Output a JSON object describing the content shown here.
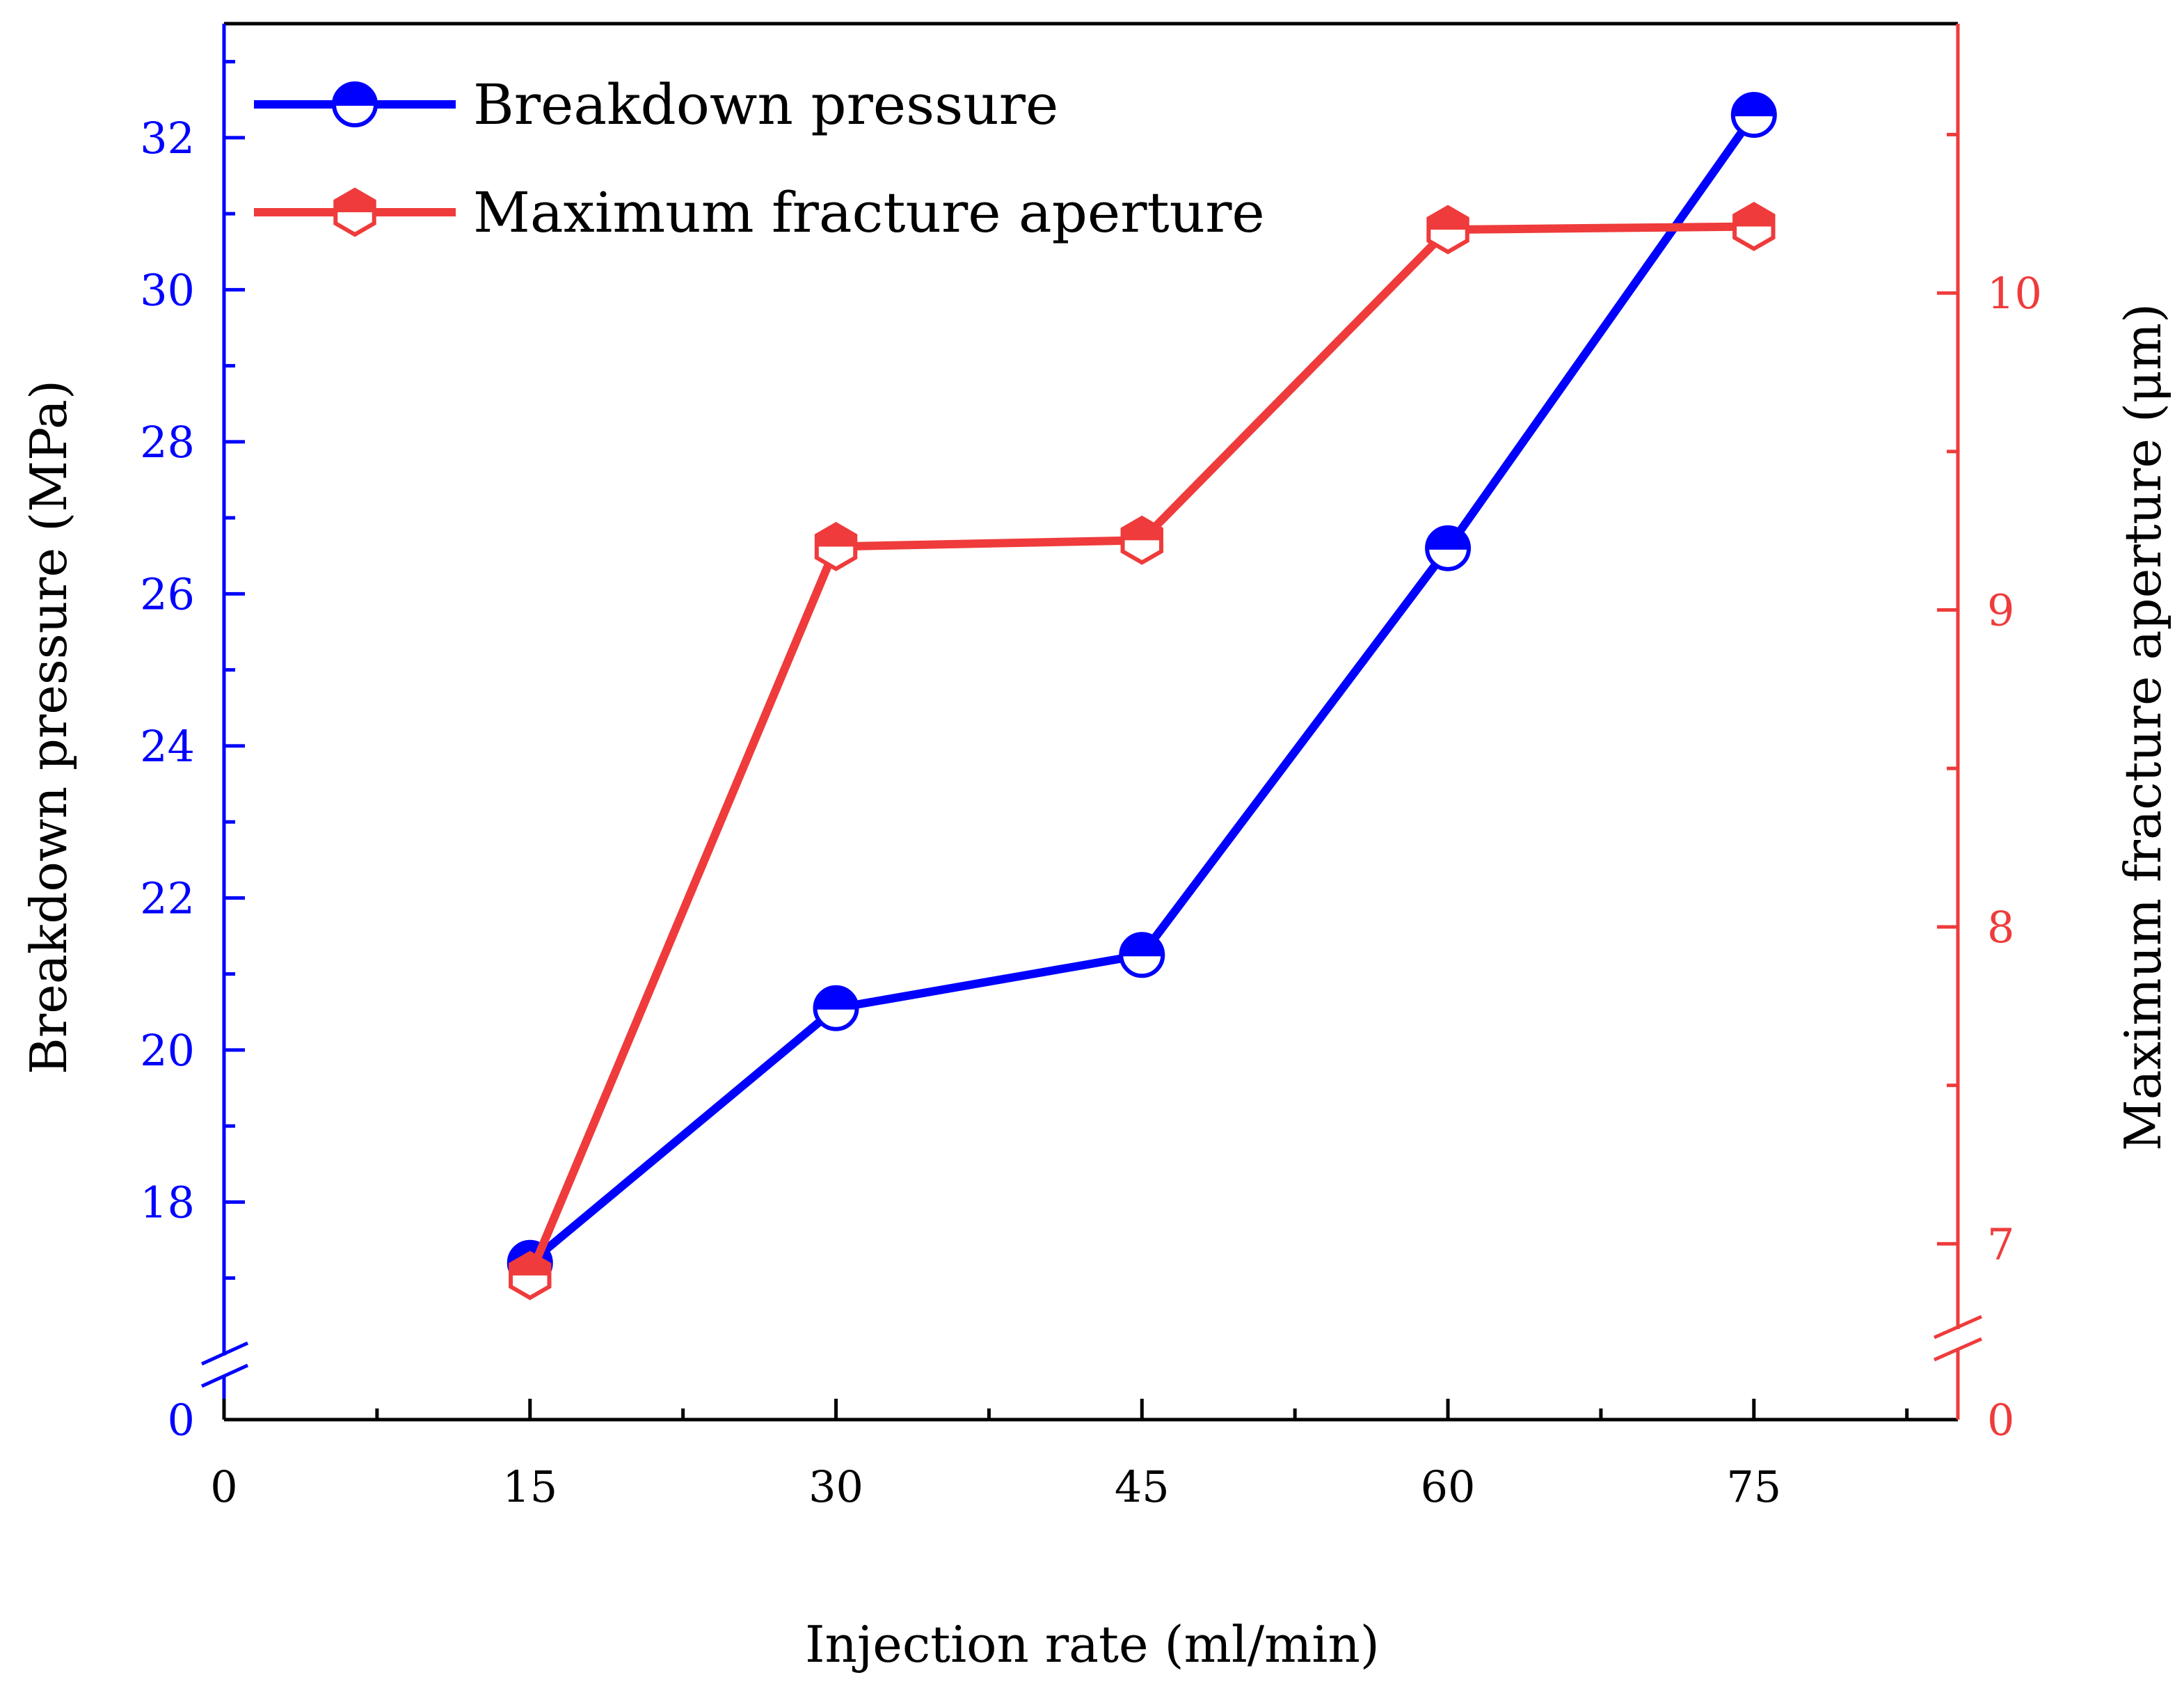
{
  "chart_data": {
    "type": "line",
    "xlabel": "Injection rate (ml/min)",
    "ylabel_left": "Breakdown pressure (MPa)",
    "ylabel_right": "Maximum fracture aperture (μm)",
    "x_ticks": [
      "0",
      "15",
      "30",
      "45",
      "60",
      "75"
    ],
    "x_tick_values": [
      0,
      15,
      30,
      45,
      60,
      75
    ],
    "xlim": [
      0,
      85
    ],
    "y_left_ticks": [
      "18",
      "20",
      "22",
      "24",
      "26",
      "28",
      "30",
      "32"
    ],
    "y_left_tick_values": [
      18,
      20,
      22,
      24,
      26,
      28,
      30,
      32
    ],
    "y_left_range": [
      16.2,
      33.5
    ],
    "y_left_break_zero_label": "0",
    "y_right_ticks": [
      "7",
      "8",
      "9",
      "10"
    ],
    "y_right_tick_values": [
      7,
      8,
      9,
      10
    ],
    "y_right_range": [
      6.7,
      10.85
    ],
    "y_right_break_zero_label": "0",
    "series": [
      {
        "name": "Breakdown pressure",
        "axis": "left",
        "color": "#0000ff",
        "marker": "circle-half-filled",
        "x": [
          15,
          30,
          45,
          60,
          75
        ],
        "values": [
          17.2,
          20.55,
          21.25,
          26.6,
          32.3
        ]
      },
      {
        "name": "Maximum fracture aperture",
        "axis": "right",
        "color": "#ef3b3b",
        "marker": "hexagon-half-filled",
        "x": [
          15,
          30,
          45,
          60,
          75
        ],
        "values": [
          6.9,
          9.2,
          9.22,
          10.2,
          10.21
        ]
      }
    ]
  }
}
